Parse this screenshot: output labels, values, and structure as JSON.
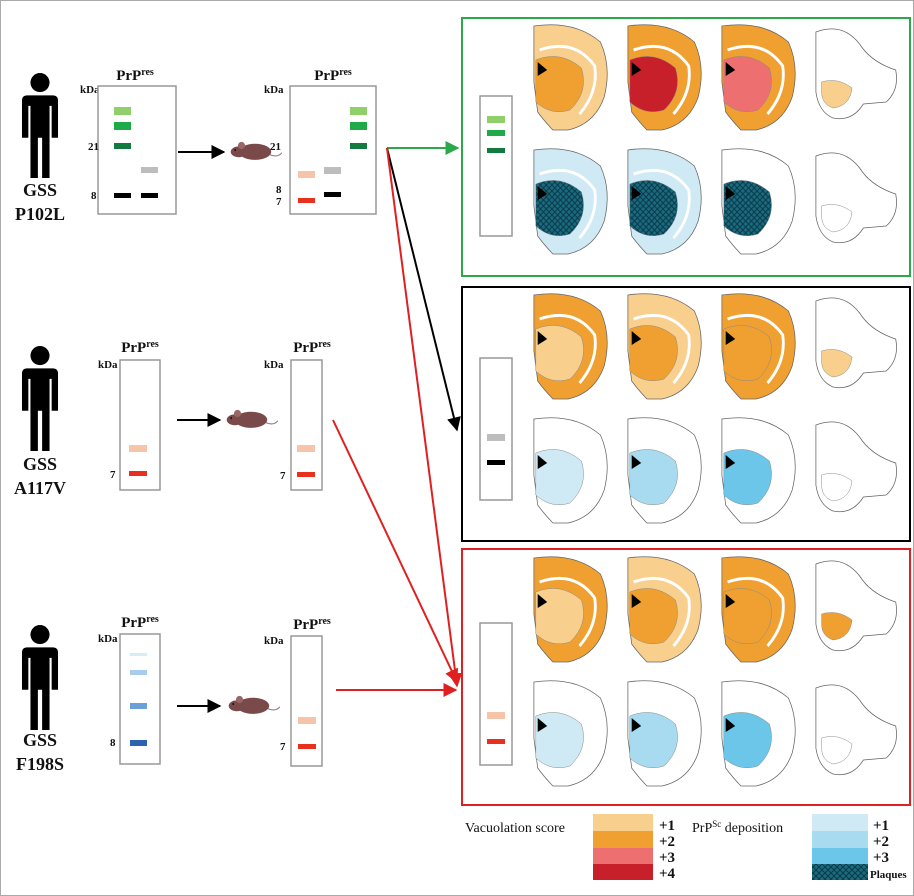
{
  "rows": [
    {
      "disease": "GSS",
      "mutation": "P102L",
      "gels": [
        {
          "title": "PrP",
          "title_sup": "res",
          "unit": "kDa",
          "markers": [
            21,
            8
          ]
        },
        {
          "title": "PrP",
          "title_sup": "res",
          "unit": "kDa",
          "markers": [
            21,
            8,
            7
          ]
        }
      ]
    },
    {
      "disease": "GSS",
      "mutation": "A117V",
      "gels": [
        {
          "title": "PrP",
          "title_sup": "res",
          "unit": "kDa",
          "markers": [
            7
          ]
        },
        {
          "title": "PrP",
          "title_sup": "res",
          "unit": "kDa",
          "markers": [
            7
          ]
        }
      ]
    },
    {
      "disease": "GSS",
      "mutation": "F198S",
      "gels": [
        {
          "title": "PrP",
          "title_sup": "res",
          "unit": "kDa",
          "markers": [
            8
          ]
        },
        {
          "title": "PrP",
          "title_sup": "res",
          "unit": "kDa",
          "markers": [
            7
          ]
        }
      ]
    }
  ],
  "legend": {
    "vacuolation": {
      "title": "Vacuolation score",
      "levels": [
        "+1",
        "+2",
        "+3",
        "+4"
      ]
    },
    "deposition": {
      "title": "PrP",
      "title_sup": "Sc",
      "title_rest": " deposition",
      "levels": [
        "+1",
        "+2",
        "+3"
      ],
      "plaques": "Plaques"
    }
  }
}
